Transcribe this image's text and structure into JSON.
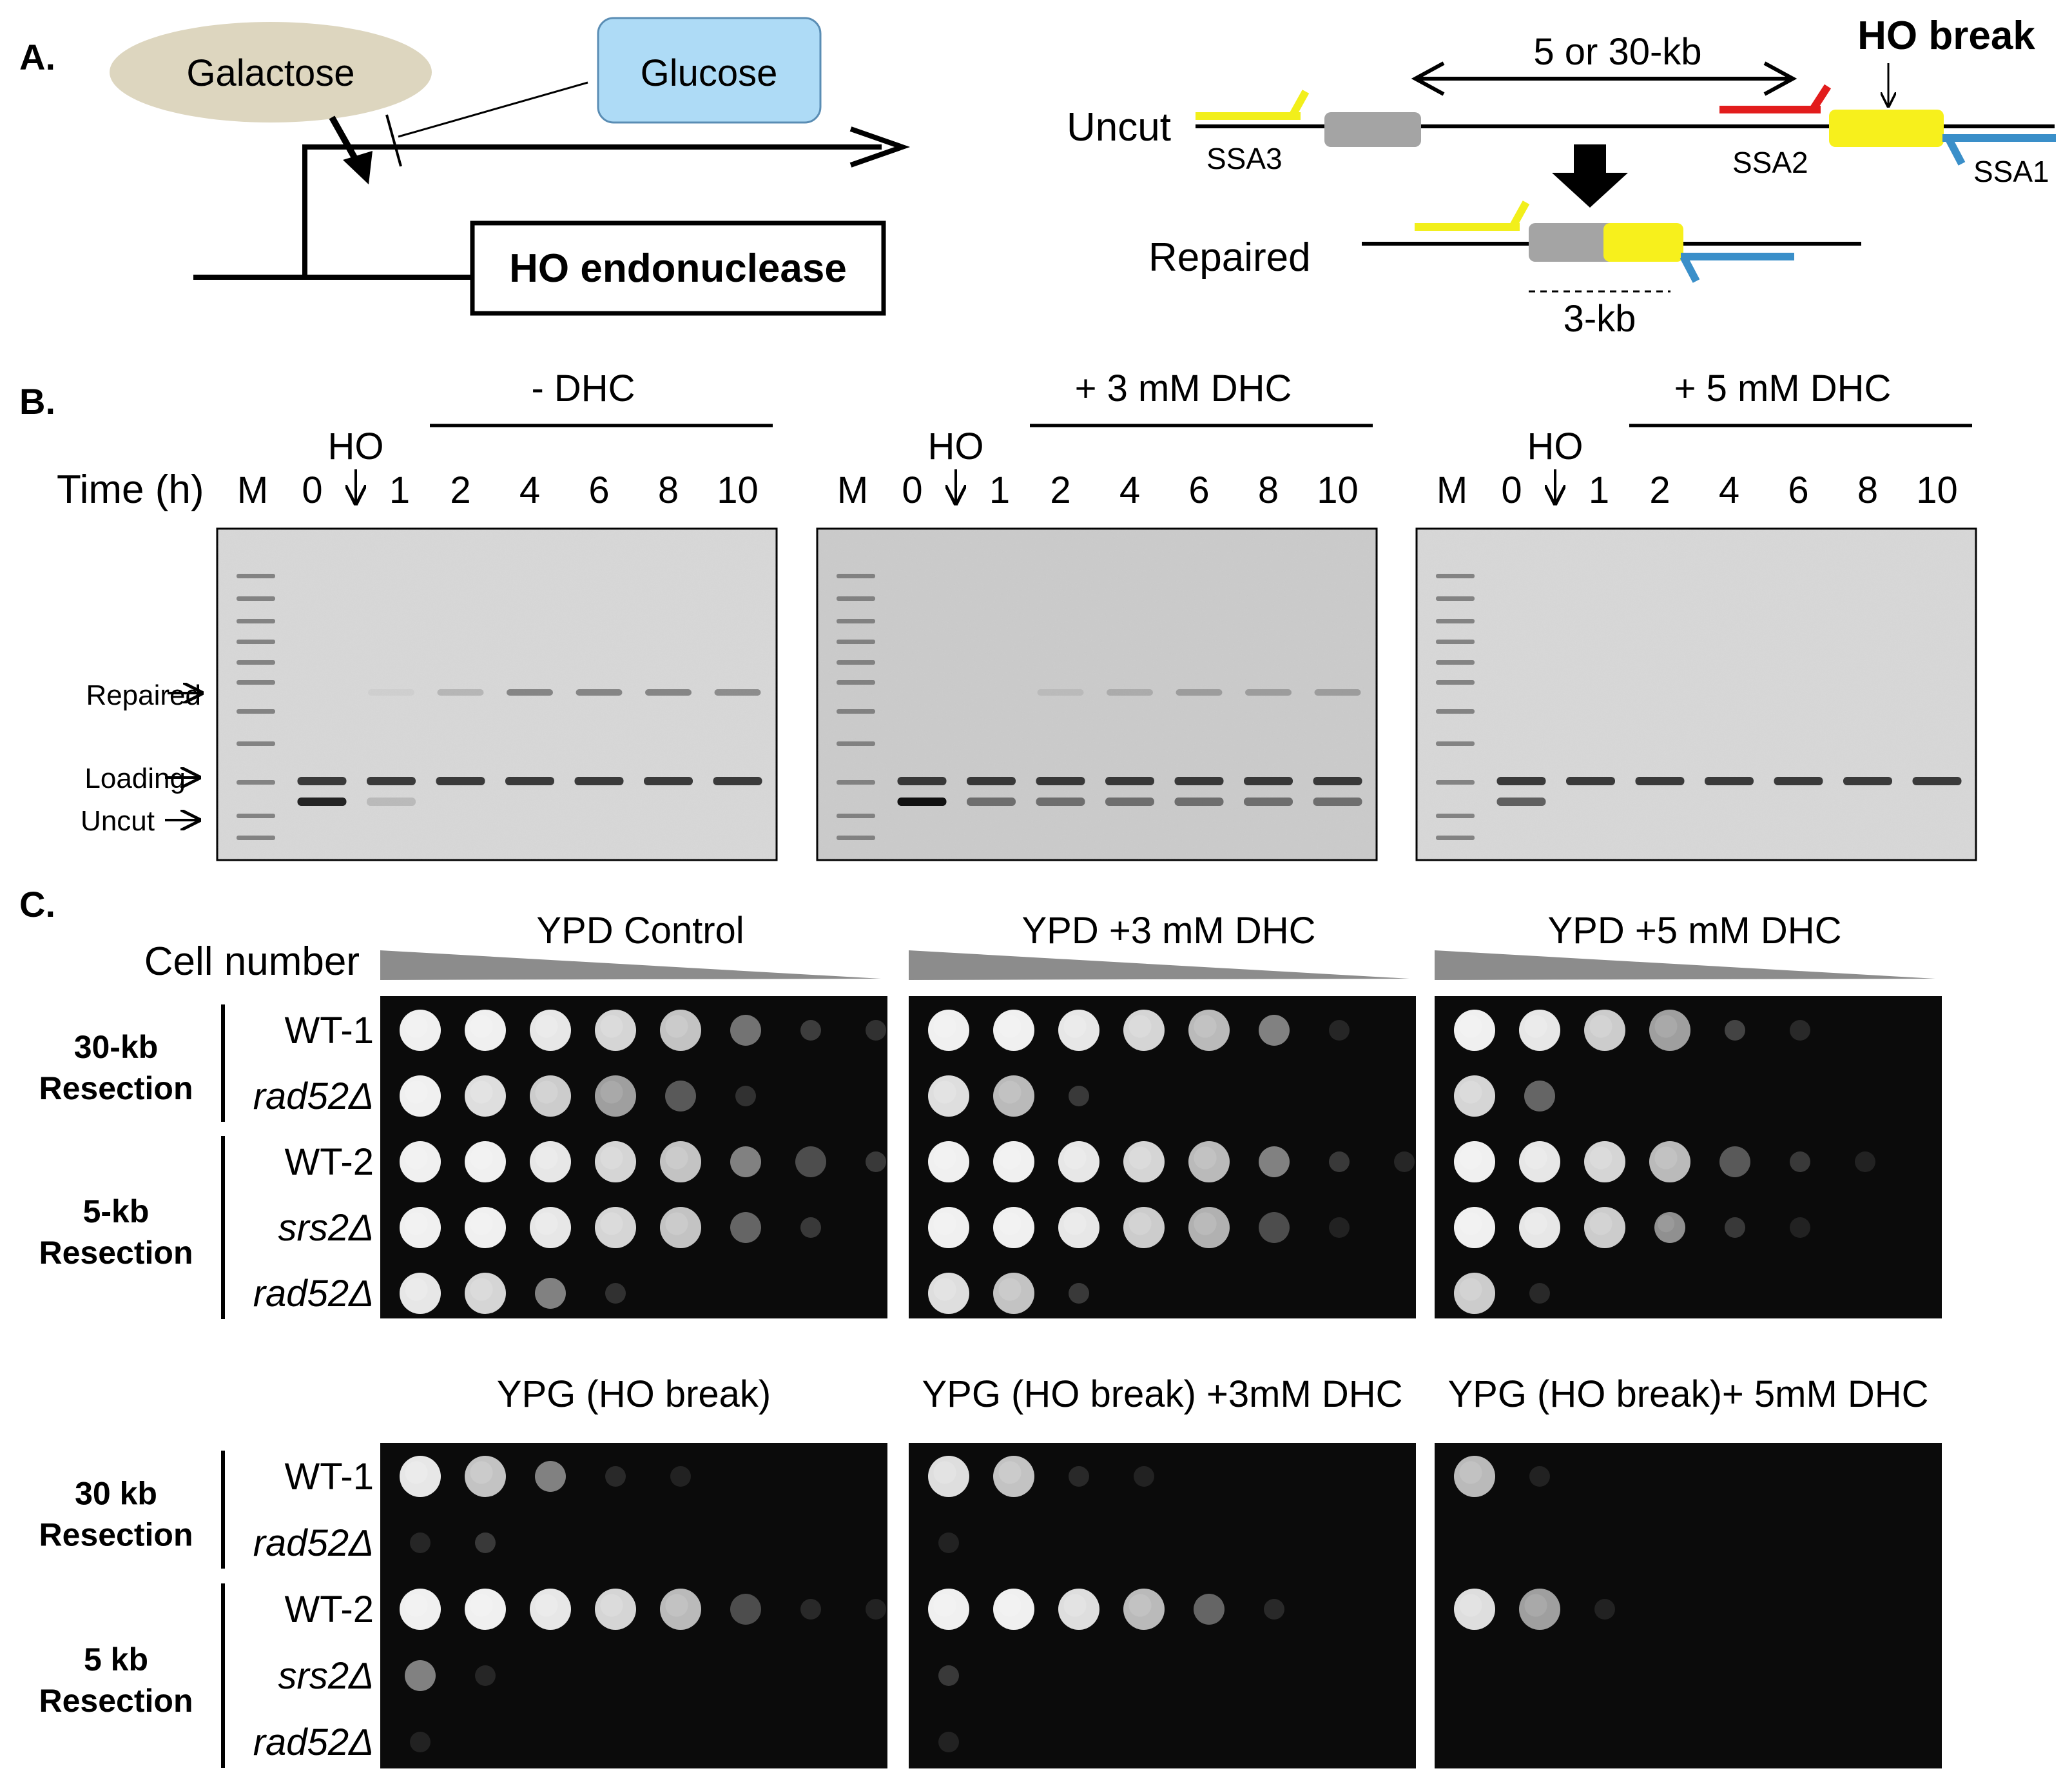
{
  "panel_labels": {
    "a": "A.",
    "b": "B.",
    "c": "C."
  },
  "panel_a": {
    "galactose": "Galactose",
    "glucose": "Glucose",
    "gene": "HO endonuclease",
    "uncut": "Uncut",
    "repaired": "Repaired",
    "distance": "5 or 30-kb",
    "ho_break": "HO break",
    "primers": {
      "ssa1": "SSA1",
      "ssa2": "SSA2",
      "ssa3": "SSA3"
    },
    "product_size": "3-kb",
    "colors": {
      "galactose_fill": "#ddd6bf",
      "glucose_fill": "#aedbf6",
      "ssa3_primer": "#f2ef1b",
      "ssa2_primer": "#e21c1c",
      "ssa1_primer": "#3a8fc9",
      "yellow_block": "#f7f01c",
      "gray_block": "#a4a4a4"
    }
  },
  "panel_b": {
    "time_label": "Time (h)",
    "ho_label": "HO",
    "band_labels": {
      "repaired": "Repaired",
      "loading": "Loading",
      "uncut": "Uncut"
    },
    "gels": [
      {
        "condition": "- DHC",
        "lanes": [
          "M",
          "0",
          "1",
          "2",
          "4",
          "6",
          "8",
          "10"
        ],
        "repaired_intensity": [
          0,
          0,
          0.05,
          0.2,
          0.5,
          0.5,
          0.5,
          0.45
        ],
        "uncut_intensity": [
          0,
          0.9,
          0.15,
          0,
          0,
          0,
          0,
          0
        ]
      },
      {
        "condition": "+ 3 mM DHC",
        "lanes": [
          "M",
          "0",
          "1",
          "2",
          "4",
          "6",
          "8",
          "10"
        ],
        "repaired_intensity": [
          0,
          0,
          0,
          0.1,
          0.2,
          0.3,
          0.3,
          0.3
        ],
        "uncut_intensity": [
          0,
          1.0,
          0.5,
          0.5,
          0.5,
          0.5,
          0.5,
          0.5
        ]
      },
      {
        "condition": "+ 5 mM DHC",
        "lanes": [
          "M",
          "0",
          "1",
          "2",
          "4",
          "6",
          "8",
          "10"
        ],
        "repaired_intensity": [
          0,
          0,
          0,
          0,
          0,
          0,
          0,
          0
        ],
        "uncut_intensity": [
          0,
          0.6,
          0,
          0,
          0,
          0,
          0,
          0
        ]
      }
    ]
  },
  "panel_c": {
    "cell_number": "Cell number",
    "group_labels_top": [
      [
        "30-kb",
        "Resection"
      ],
      [
        "5-kb",
        "Resection"
      ]
    ],
    "group_labels_bottom": [
      [
        "30 kb",
        "Resection"
      ],
      [
        "5 kb",
        "Resection"
      ]
    ],
    "strains": [
      "WT-1",
      "rad52Δ",
      "WT-2",
      "srs2Δ",
      "rad52Δ"
    ],
    "plates": [
      {
        "title": "YPD Control",
        "rows": [
          [
            1,
            1,
            0.95,
            0.85,
            0.75,
            0.45,
            0.22,
            0.15
          ],
          [
            1,
            0.9,
            0.8,
            0.6,
            0.35,
            0.15,
            0,
            0
          ],
          [
            1,
            1,
            0.95,
            0.85,
            0.75,
            0.5,
            0.3,
            0.2
          ],
          [
            1,
            1,
            0.95,
            0.85,
            0.75,
            0.4,
            0.2,
            0
          ],
          [
            0.95,
            0.85,
            0.5,
            0.15,
            0,
            0,
            0,
            0
          ]
        ]
      },
      {
        "title": "YPD +3 mM DHC",
        "rows": [
          [
            1,
            1,
            0.95,
            0.85,
            0.7,
            0.5,
            0.08,
            0
          ],
          [
            0.9,
            0.7,
            0.2,
            0,
            0,
            0,
            0,
            0
          ],
          [
            1,
            1,
            0.95,
            0.85,
            0.7,
            0.5,
            0.2,
            0.08
          ],
          [
            1,
            1,
            0.95,
            0.8,
            0.65,
            0.3,
            0.05,
            0
          ],
          [
            0.9,
            0.75,
            0.2,
            0,
            0,
            0,
            0,
            0
          ]
        ]
      },
      {
        "title": "YPD +5 mM DHC",
        "rows": [
          [
            1,
            0.95,
            0.8,
            0.6,
            0.25,
            0.1,
            0,
            0
          ],
          [
            0.85,
            0.4,
            0,
            0,
            0,
            0,
            0,
            0
          ],
          [
            1,
            0.95,
            0.85,
            0.7,
            0.35,
            0.2,
            0.05,
            0
          ],
          [
            1,
            0.95,
            0.8,
            0.55,
            0.2,
            0.05,
            0,
            0
          ],
          [
            0.8,
            0.1,
            0,
            0,
            0,
            0,
            0,
            0
          ]
        ]
      },
      {
        "title": "YPG (HO break)",
        "rows": [
          [
            0.95,
            0.75,
            0.5,
            0.1,
            0.05,
            0,
            0,
            0
          ],
          [
            0.08,
            0.2,
            0,
            0,
            0,
            0,
            0,
            0
          ],
          [
            1,
            1,
            0.95,
            0.85,
            0.7,
            0.3,
            0.1,
            0.05
          ],
          [
            0.5,
            0.08,
            0,
            0,
            0,
            0,
            0,
            0
          ],
          [
            0.05,
            0,
            0,
            0,
            0,
            0,
            0,
            0
          ]
        ]
      },
      {
        "title": "YPG (HO break) +3mM DHC",
        "rows": [
          [
            0.9,
            0.75,
            0.1,
            0.05,
            0,
            0,
            0,
            0
          ],
          [
            0.05,
            0,
            0,
            0,
            0,
            0,
            0,
            0
          ],
          [
            1,
            1,
            0.9,
            0.7,
            0.4,
            0.1,
            0,
            0
          ],
          [
            0.2,
            0,
            0,
            0,
            0,
            0,
            0,
            0
          ],
          [
            0.05,
            0,
            0,
            0,
            0,
            0,
            0,
            0
          ]
        ]
      },
      {
        "title": "YPG (HO break)+ 5mM DHC",
        "rows": [
          [
            0.7,
            0.05,
            0,
            0,
            0,
            0,
            0,
            0
          ],
          [
            0,
            0,
            0,
            0,
            0,
            0,
            0,
            0
          ],
          [
            0.9,
            0.6,
            0.05,
            0,
            0,
            0,
            0,
            0
          ],
          [
            0,
            0,
            0,
            0,
            0,
            0,
            0,
            0
          ],
          [
            0,
            0,
            0,
            0,
            0,
            0,
            0,
            0
          ]
        ]
      }
    ]
  }
}
